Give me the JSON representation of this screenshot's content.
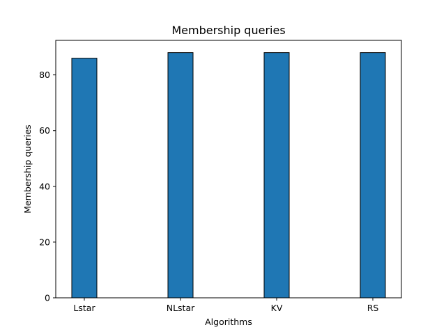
{
  "chart_data": {
    "type": "bar",
    "title": "Membership queries",
    "xlabel": "Algorithms",
    "ylabel": "Membership queries",
    "categories": [
      "Lstar",
      "NLstar",
      "KV",
      "RS"
    ],
    "values": [
      86,
      88,
      88,
      88
    ],
    "ylim": [
      0,
      92.4
    ],
    "yticks": [
      "0",
      "20",
      "40",
      "60",
      "80"
    ],
    "grid": false,
    "bar_color": "#1f77b4",
    "edge_color": "#000000"
  }
}
